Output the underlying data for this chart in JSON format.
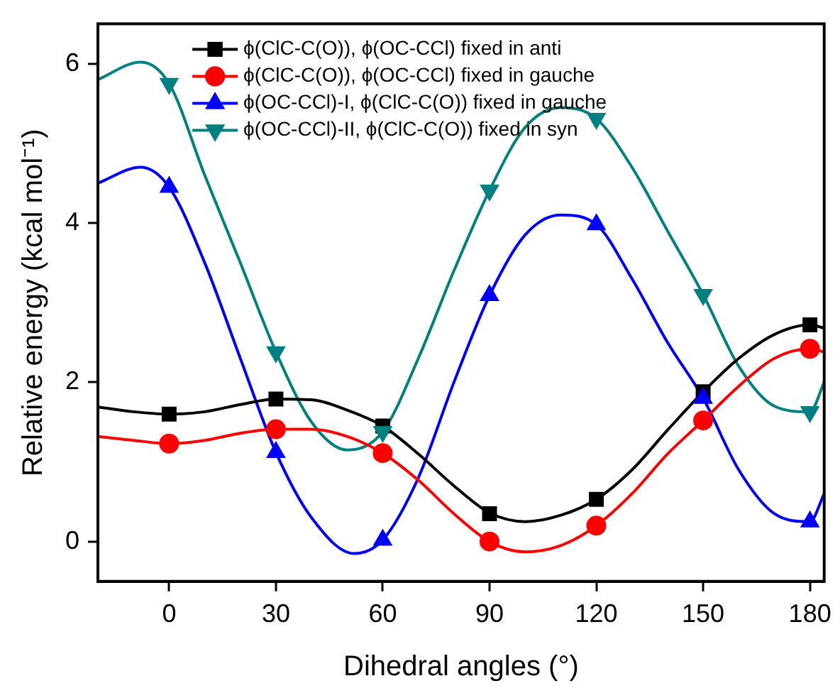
{
  "chart_data": {
    "type": "scatter",
    "xlabel": "Dihedral angles (°)",
    "ylabel": "Relative energy (kcal mol⁻¹)",
    "xlim": [
      -20,
      184
    ],
    "xticks": [
      0,
      30,
      60,
      90,
      120,
      150,
      180
    ],
    "ylim": [
      -0.5,
      6.5
    ],
    "yticks": [
      0,
      2,
      4,
      6
    ],
    "grid": false,
    "legend": "top",
    "series": [
      {
        "type": "line",
        "color": "#000000",
        "marker": "none",
        "x": [
          -20,
          -10,
          0,
          10,
          20,
          30,
          40,
          50,
          60,
          70,
          80,
          90,
          100,
          110,
          120,
          130,
          140,
          150,
          160,
          170,
          180,
          184
        ],
        "values": [
          1.69,
          1.63,
          1.6,
          1.63,
          1.72,
          1.79,
          1.78,
          1.65,
          1.45,
          1.1,
          0.7,
          0.36,
          0.25,
          0.33,
          0.53,
          0.9,
          1.4,
          1.88,
          2.3,
          2.6,
          2.72,
          2.68
        ]
      },
      {
        "type": "line",
        "color": "#ff0000",
        "marker": "none",
        "x": [
          -20,
          -10,
          0,
          10,
          20,
          30,
          40,
          50,
          60,
          70,
          80,
          90,
          100,
          110,
          120,
          130,
          140,
          150,
          160,
          170,
          180,
          184
        ],
        "values": [
          1.32,
          1.27,
          1.23,
          1.27,
          1.36,
          1.41,
          1.41,
          1.32,
          1.11,
          0.77,
          0.35,
          0.0,
          -0.13,
          -0.05,
          0.2,
          0.6,
          1.1,
          1.52,
          1.95,
          2.3,
          2.42,
          2.38
        ]
      },
      {
        "type": "line",
        "color": "#0000ff",
        "marker": "none",
        "x": [
          -20,
          -8,
          0,
          10,
          20,
          30,
          40,
          52,
          60,
          70,
          80,
          90,
          100,
          110,
          120,
          130,
          140,
          150,
          160,
          170,
          180,
          184
        ],
        "values": [
          4.5,
          4.7,
          4.45,
          3.5,
          2.3,
          1.12,
          0.3,
          -0.15,
          0.02,
          0.8,
          2.0,
          3.09,
          3.85,
          4.1,
          3.98,
          3.3,
          2.5,
          1.8,
          0.9,
          0.35,
          0.25,
          0.6
        ]
      },
      {
        "type": "line",
        "color": "#008080",
        "marker": "none",
        "x": [
          -20,
          -8,
          0,
          10,
          20,
          30,
          40,
          50,
          60,
          70,
          80,
          90,
          100,
          110,
          120,
          130,
          140,
          150,
          160,
          170,
          180,
          184
        ],
        "values": [
          5.8,
          6.02,
          5.75,
          4.6,
          3.5,
          2.38,
          1.5,
          1.15,
          1.38,
          2.3,
          3.4,
          4.41,
          5.2,
          5.45,
          5.31,
          4.7,
          3.9,
          3.1,
          2.2,
          1.7,
          1.63,
          2.0
        ]
      },
      {
        "name": "ϕ(ClC-C(O)), ϕ(OC-CCl) fixed in anti",
        "color": "#000000",
        "marker": "square",
        "x": [
          0,
          30,
          60,
          90,
          120,
          150,
          180
        ],
        "values": [
          1.6,
          1.79,
          1.45,
          0.35,
          0.53,
          1.88,
          2.72
        ]
      },
      {
        "name": "ϕ(ClC-C(O)), ϕ(OC-CCl) fixed in gauche",
        "color": "#ff0000",
        "marker": "circle",
        "x": [
          0,
          30,
          60,
          90,
          120,
          150,
          180
        ],
        "values": [
          1.23,
          1.41,
          1.11,
          0.0,
          0.2,
          1.52,
          2.42
        ]
      },
      {
        "name": "ϕ(OC-CCl)-I, ϕ(ClC-C(O)) fixed in gauche",
        "color": "#0000ff",
        "marker": "triangle",
        "x": [
          0,
          30,
          60,
          90,
          120,
          150,
          180
        ],
        "values": [
          4.45,
          1.12,
          0.02,
          3.09,
          3.98,
          1.8,
          0.25
        ]
      },
      {
        "name": "ϕ(OC-CCl)-II, ϕ(ClC-C(O)) fixed in syn",
        "color": "#008080",
        "marker": "triangle_down",
        "x": [
          0,
          30,
          60,
          90,
          120,
          150,
          180
        ],
        "values": [
          5.75,
          2.38,
          1.38,
          4.41,
          5.31,
          3.1,
          1.63
        ]
      }
    ]
  }
}
